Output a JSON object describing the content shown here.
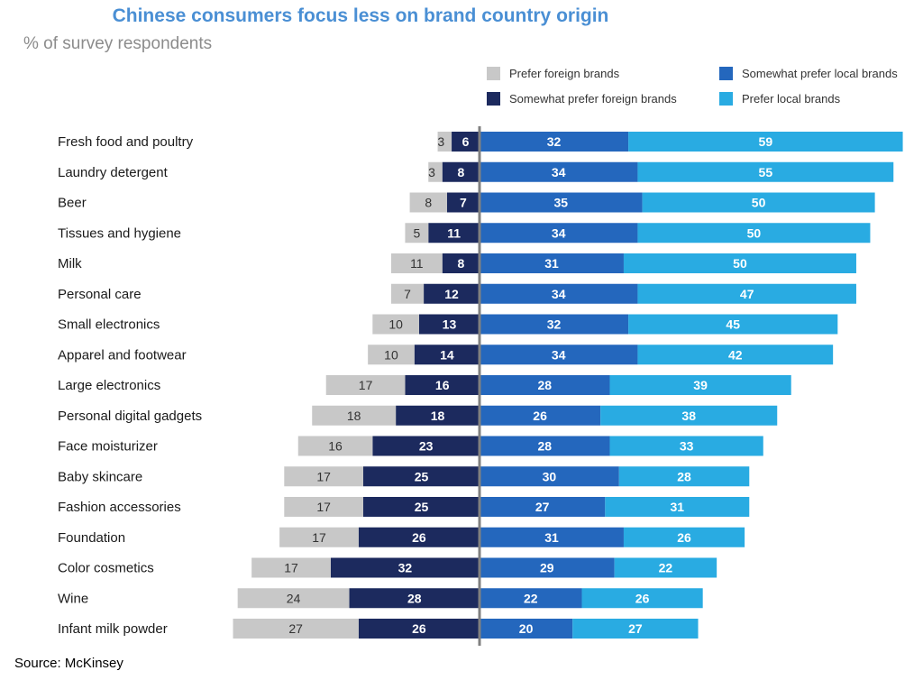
{
  "chart_data": {
    "type": "bar",
    "orientation": "horizontal",
    "stacked": "diverging",
    "title": "Chinese consumers focus less on brand country origin",
    "subtitle": "% of survey respondents",
    "source": "Source: McKinsey",
    "legend_placement": "top-right",
    "categories": [
      "Fresh food and poultry",
      "Laundry detergent",
      "Beer",
      "Tissues and hygiene",
      "Milk",
      "Personal care",
      "Small electronics",
      "Apparel and footwear",
      "Large electronics",
      "Personal digital gadgets",
      "Face moisturizer",
      "Baby skincare",
      "Fashion accessories",
      "Foundation",
      "Color cosmetics",
      "Wine",
      "Infant milk powder"
    ],
    "series": [
      {
        "name": "Prefer foreign brands",
        "color": "#c8c8c8",
        "side": "left",
        "values": [
          3,
          3,
          8,
          5,
          11,
          7,
          10,
          10,
          17,
          18,
          16,
          17,
          17,
          17,
          17,
          24,
          27
        ]
      },
      {
        "name": "Somewhat prefer foreign brands",
        "color": "#1c2a5e",
        "side": "left",
        "values": [
          6,
          8,
          7,
          11,
          8,
          12,
          13,
          14,
          16,
          18,
          23,
          25,
          25,
          26,
          32,
          28,
          26
        ]
      },
      {
        "name": "Somewhat prefer local brands",
        "color": "#2467bd",
        "side": "right",
        "values": [
          32,
          34,
          35,
          34,
          31,
          34,
          32,
          34,
          28,
          26,
          28,
          30,
          27,
          31,
          29,
          22,
          20
        ]
      },
      {
        "name": "Prefer local brands",
        "color": "#29abe2",
        "side": "right",
        "values": [
          59,
          55,
          50,
          50,
          50,
          47,
          45,
          42,
          39,
          38,
          33,
          28,
          31,
          26,
          22,
          26,
          27
        ]
      }
    ],
    "grid": false,
    "center_line_color": "#808080"
  }
}
